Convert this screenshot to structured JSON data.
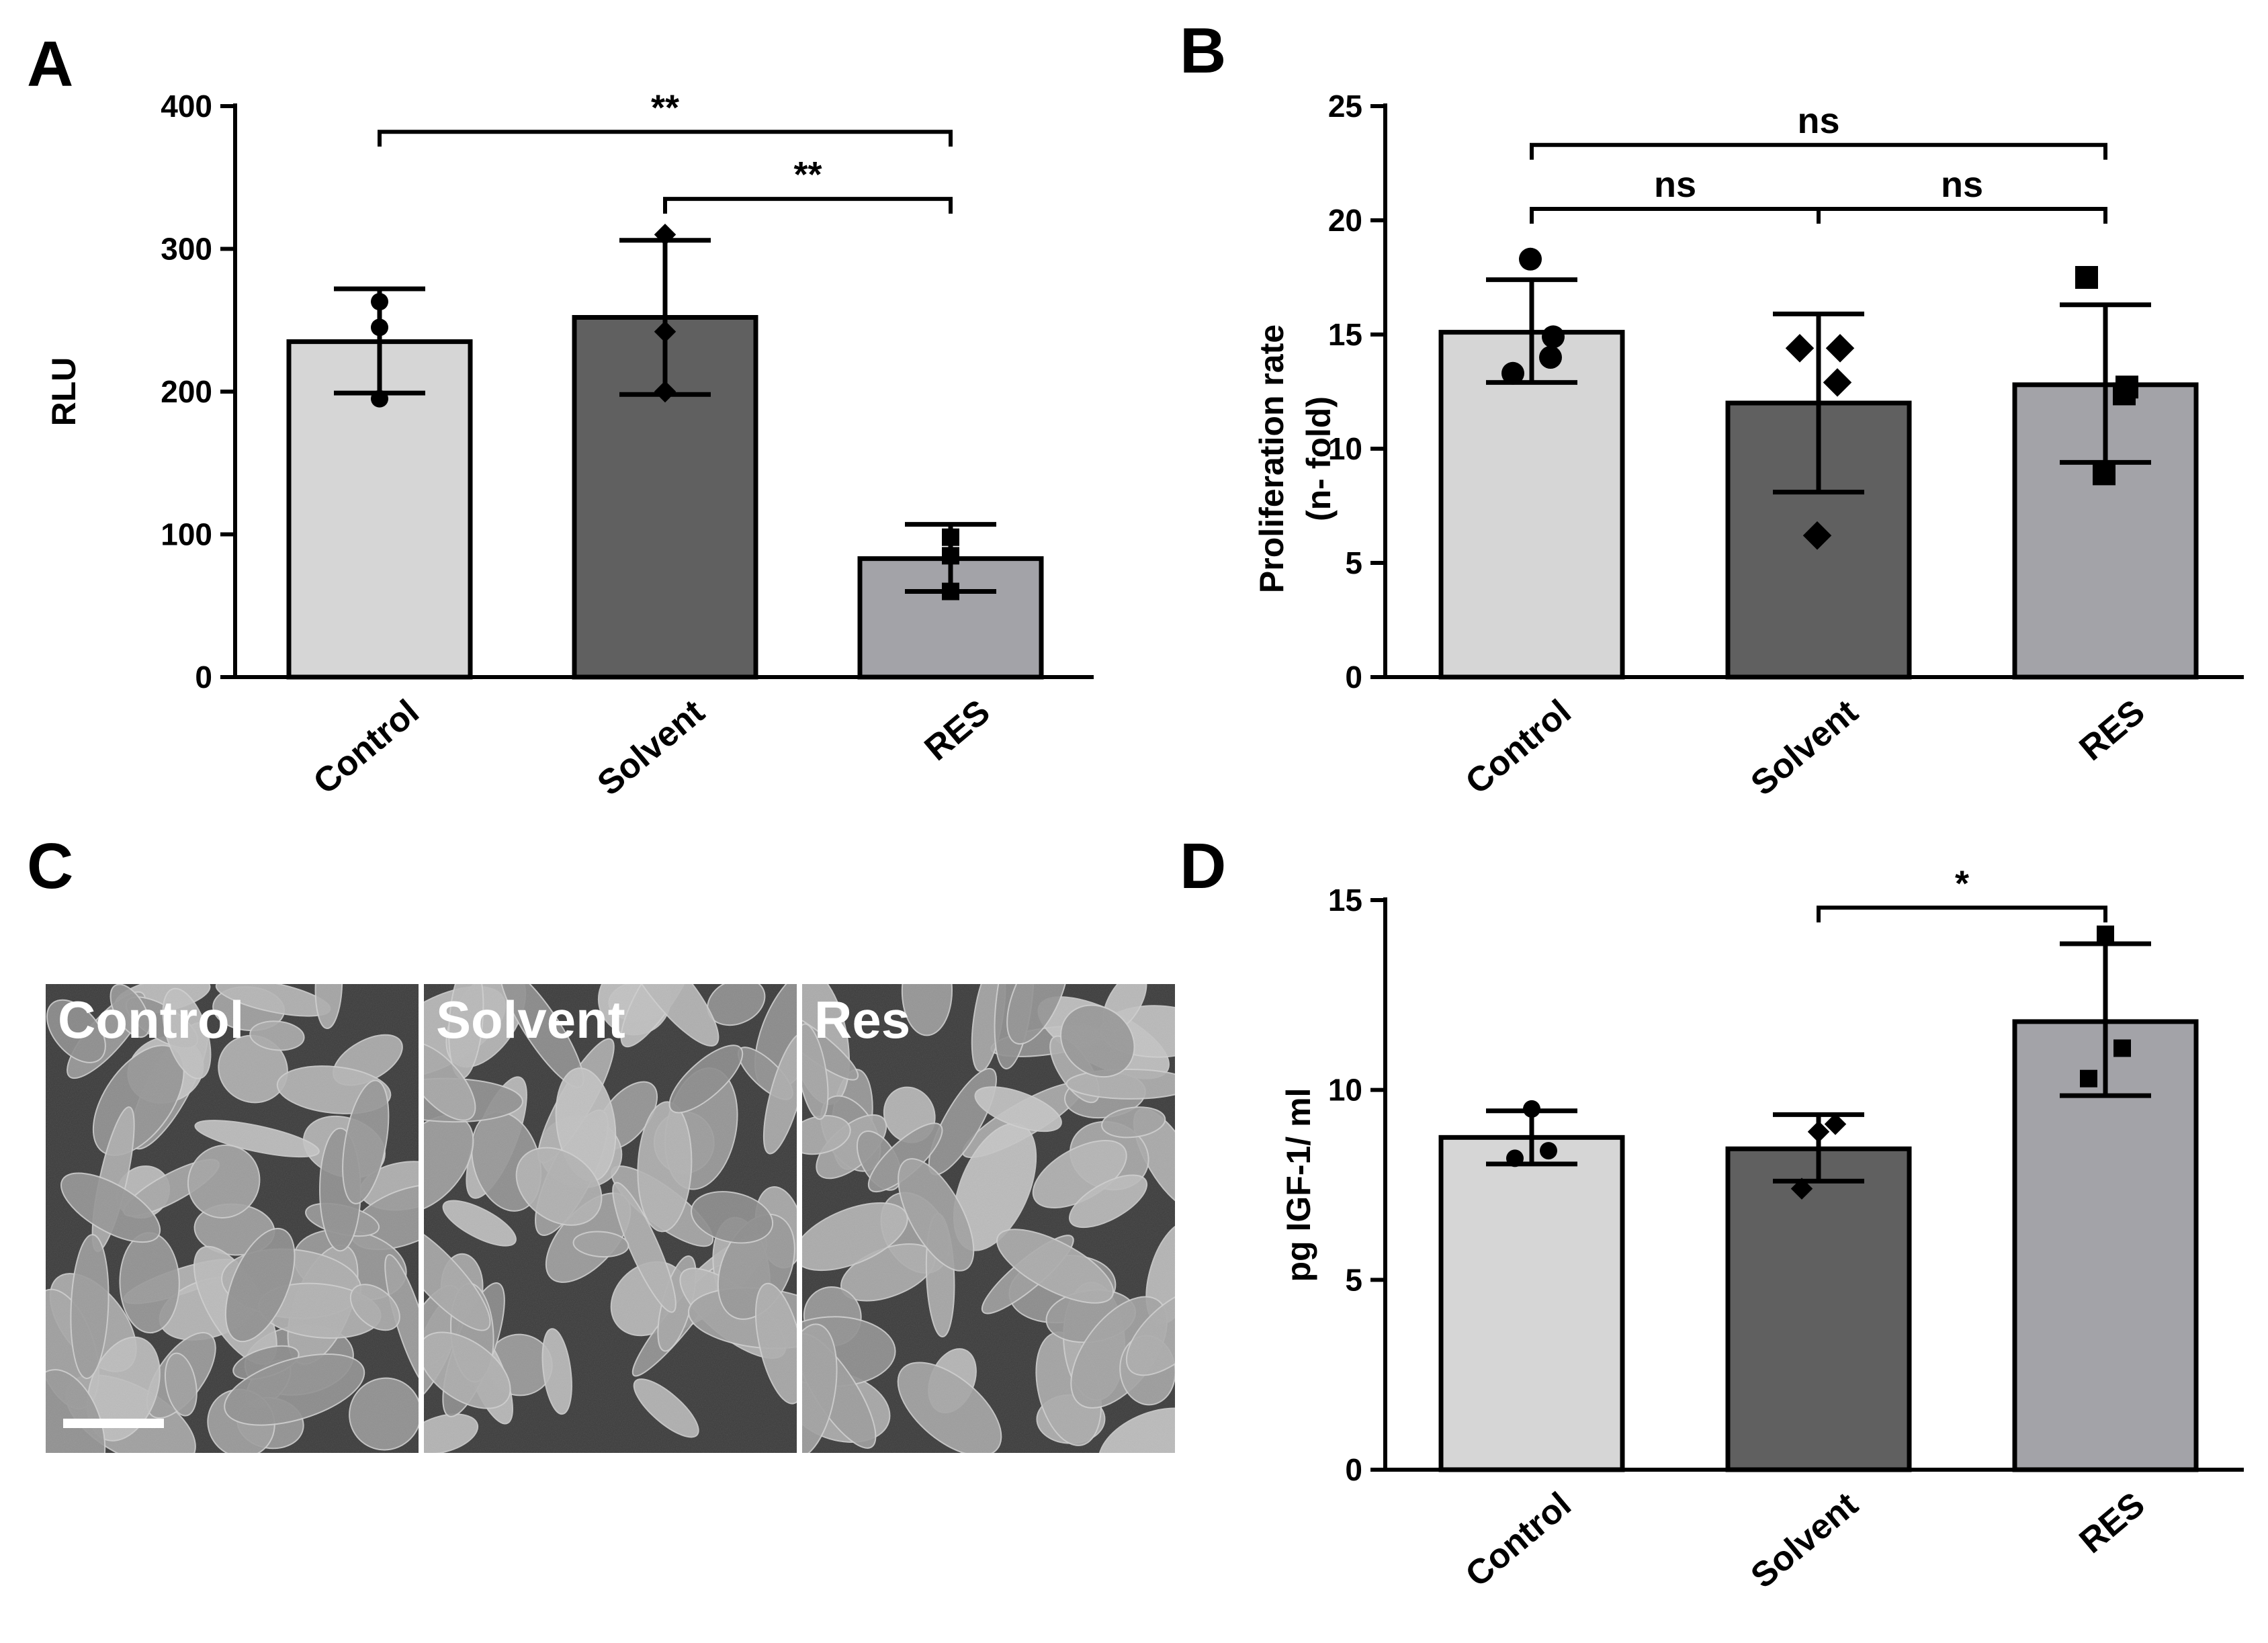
{
  "colors": {
    "control": "#d6d6d6",
    "solvent": "#606060",
    "res": "#a3a3a8",
    "axis": "#000000",
    "micro_bg": "#3a3a3a",
    "cell": "#a8a8a8"
  },
  "chart_data": [
    {
      "panel": "A",
      "type": "bar",
      "title": "",
      "xlabel": "",
      "ylabel": "RLU",
      "ylim": [
        0,
        400
      ],
      "yticks": [
        "0",
        "100",
        "200",
        "300",
        "400"
      ],
      "categories": [
        "Control",
        "Solvent",
        "RES"
      ],
      "values": [
        235,
        252,
        83
      ],
      "error_low": [
        199,
        198,
        60
      ],
      "error_high": [
        272,
        306,
        107
      ],
      "points": [
        [
          195,
          245,
          263
        ],
        [
          200,
          242,
          310
        ],
        [
          60,
          85,
          98
        ]
      ],
      "markers": [
        "circle",
        "diamond",
        "square"
      ],
      "significance": [
        {
          "from": 0,
          "to": 2,
          "label": "**",
          "level": 382
        },
        {
          "from": 1,
          "to": 2,
          "label": "**",
          "level": 335
        }
      ]
    },
    {
      "panel": "B",
      "type": "bar",
      "title": "",
      "xlabel": "",
      "ylabel_lines": [
        "Proliferation rate",
        "(n- fold)"
      ],
      "ylim": [
        0,
        25
      ],
      "yticks": [
        "0",
        "5",
        "10",
        "15",
        "20",
        "25"
      ],
      "categories": [
        "Control",
        "Solvent",
        "RES"
      ],
      "values": [
        15.1,
        12.0,
        12.8
      ],
      "error_low": [
        12.9,
        8.1,
        9.4
      ],
      "error_high": [
        17.4,
        15.9,
        16.3
      ],
      "points": [
        [
          13.3,
          14.9,
          14.0,
          18.3
        ],
        [
          14.4,
          14.4,
          12.9,
          6.2
        ],
        [
          17.5,
          12.7,
          12.4,
          8.9
        ]
      ],
      "markers": [
        "circle",
        "diamond",
        "square"
      ],
      "significance": [
        {
          "from": 0,
          "to": 2,
          "label": "ns",
          "level": 23.3
        },
        {
          "from": 0,
          "to": 1,
          "label": "ns",
          "level": 20.5
        },
        {
          "from": 1,
          "to": 2,
          "label": "ns",
          "level": 20.5
        }
      ]
    },
    {
      "panel": "D",
      "type": "bar",
      "title": "",
      "xlabel": "",
      "ylabel": "pg IGF-1/ ml",
      "ylim": [
        0,
        15
      ],
      "yticks": [
        "0",
        "5",
        "10",
        "15"
      ],
      "categories": [
        "Control",
        "Solvent",
        "RES"
      ],
      "values": [
        8.75,
        8.45,
        11.8
      ],
      "error_low": [
        8.05,
        7.6,
        9.85
      ],
      "error_high": [
        9.45,
        9.35,
        13.85
      ],
      "points": [
        [
          8.2,
          8.4,
          9.5
        ],
        [
          7.4,
          9.1,
          8.9
        ],
        [
          10.3,
          11.1,
          14.1
        ]
      ],
      "markers": [
        "circle",
        "diamond",
        "square"
      ],
      "significance": [
        {
          "from": 1,
          "to": 2,
          "label": "*",
          "level": 14.8
        }
      ]
    }
  ],
  "panel_c": {
    "letter": "C",
    "images": [
      {
        "label": "Control"
      },
      {
        "label": "Solvent"
      },
      {
        "label": "Res"
      }
    ]
  }
}
